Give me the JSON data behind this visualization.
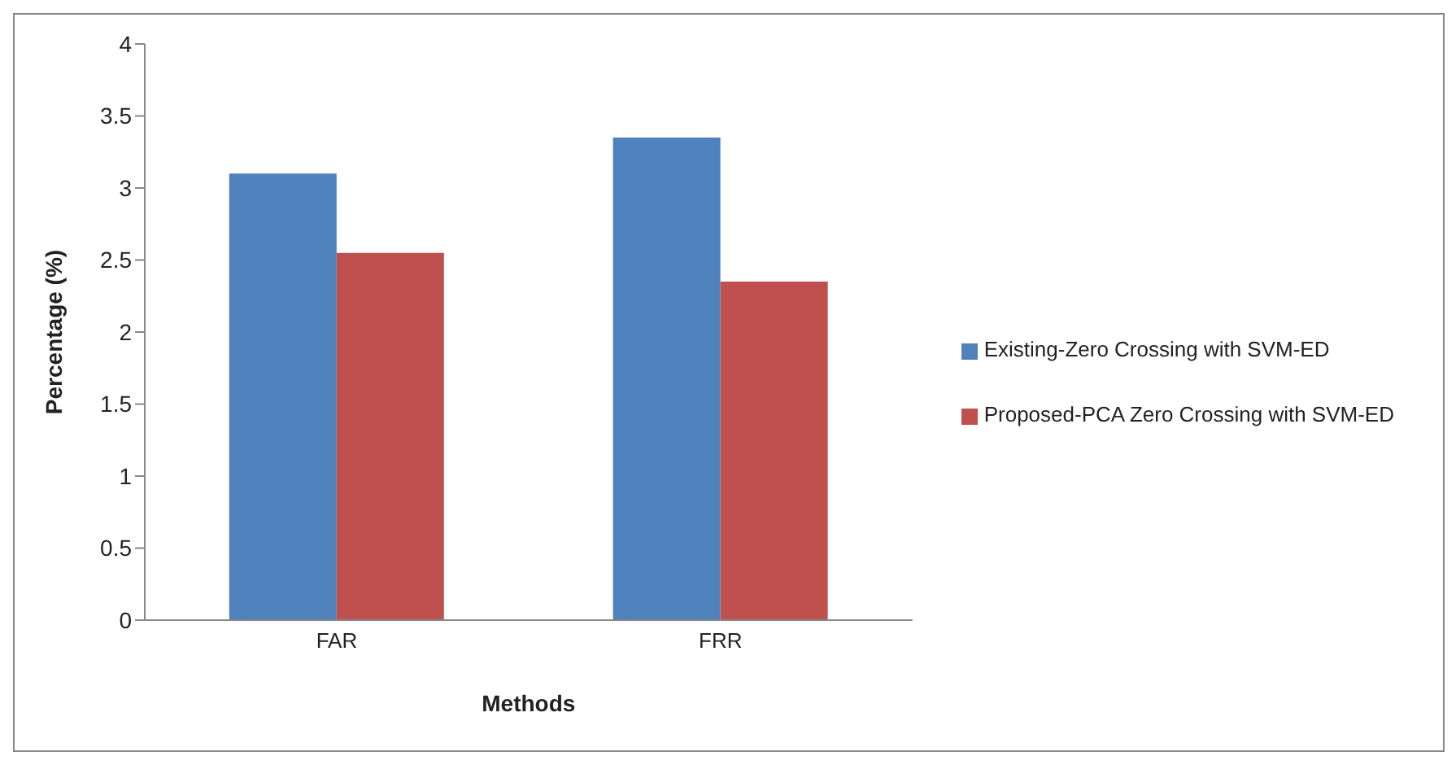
{
  "chart_data": {
    "type": "bar",
    "xlabel": "Methods",
    "ylabel": "Percentage (%)",
    "categories": [
      "FAR",
      "FRR"
    ],
    "series": [
      {
        "name": "Existing-Zero Crossing with SVM-ED",
        "color": "#4f81bd",
        "values": [
          3.1,
          3.35
        ]
      },
      {
        "name": "Proposed-PCA Zero Crossing with SVM-ED",
        "color": "#c0504d",
        "values": [
          2.55,
          2.35
        ]
      }
    ],
    "ylim": [
      0,
      4
    ],
    "yticks": [
      0,
      0.5,
      1,
      1.5,
      2,
      2.5,
      3,
      3.5,
      4
    ],
    "grid": false,
    "legend": "right"
  }
}
